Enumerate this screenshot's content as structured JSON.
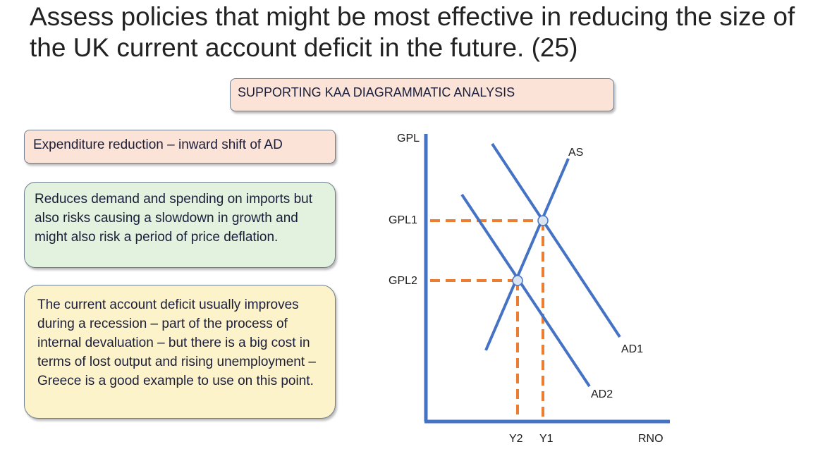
{
  "slide": {
    "title": "Assess policies that might be most effective in reducing the size of the UK current account deficit in the future. (25)"
  },
  "boxes": {
    "heading": "SUPPORTING KAA DIAGRAMMATIC ANALYSIS",
    "expenditure": "Expenditure reduction – inward shift of AD",
    "demand": "Reduces demand and spending on imports but also risks causing a slowdown in growth and might also risk a period of price deflation.",
    "recession": "The current account deficit usually improves during a recession – part of the process of internal devaluation – but there is a big cost in terms of lost output and rising unemployment – Greece is a good example to use on this point."
  },
  "diagram": {
    "y_axis_label": "GPL",
    "x_axis_label": "RNO",
    "curves": {
      "as": "AS",
      "ad1": "AD1",
      "ad2": "AD2"
    },
    "levels": {
      "gpl1": "GPL1",
      "gpl2": "GPL2",
      "y1": "Y1",
      "y2": "Y2"
    },
    "colors": {
      "axis": "#4472c4",
      "curves": "#4472c4",
      "guides": "#ed7d31",
      "points": "#dbe5f1"
    }
  }
}
